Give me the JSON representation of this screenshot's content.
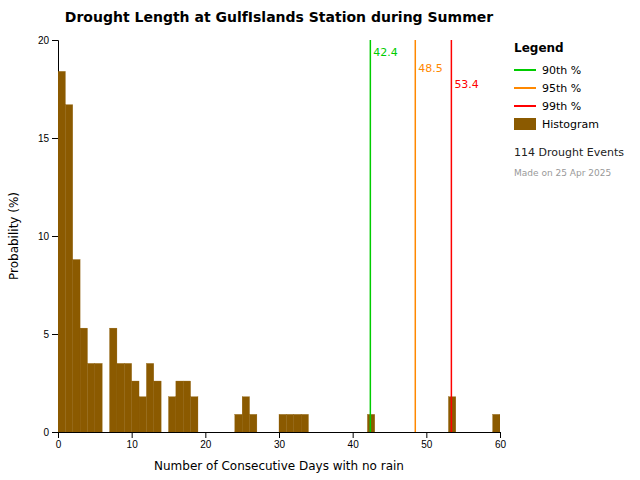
{
  "chart_data": {
    "type": "histogram",
    "title": "Drought Length at GulfIslands Station during Summer",
    "xlabel": "Number of Consecutive Days with no rain",
    "ylabel": "Probability (%)",
    "name": "Histogram",
    "color": "#8B5A00",
    "bins": [
      0,
      1,
      2,
      3,
      4,
      5,
      6,
      7,
      8,
      9,
      10,
      11,
      12,
      13,
      14,
      15,
      16,
      17,
      18,
      19,
      20,
      21,
      22,
      23,
      24,
      25,
      26,
      27,
      28,
      29,
      30,
      31,
      32,
      33,
      34,
      35,
      36,
      37,
      38,
      39,
      40,
      41,
      42,
      43,
      44,
      45,
      46,
      47,
      48,
      49,
      50,
      51,
      52,
      53,
      54,
      55,
      56,
      57,
      58,
      59,
      60
    ],
    "values": [
      18.4,
      16.7,
      8.8,
      5.3,
      3.5,
      3.5,
      0.0,
      5.3,
      3.5,
      3.5,
      2.6,
      1.8,
      3.5,
      2.6,
      0.0,
      1.8,
      2.6,
      2.6,
      1.8,
      0.0,
      0.0,
      0.0,
      0.0,
      0.0,
      0.9,
      1.8,
      0.9,
      0.0,
      0.0,
      0.0,
      0.9,
      0.9,
      0.9,
      0.9,
      0.0,
      0.0,
      0.0,
      0.0,
      0.0,
      0.0,
      0.0,
      0.0,
      0.9,
      0.0,
      0.0,
      0.0,
      0.0,
      0.0,
      0.0,
      0.0,
      0.0,
      0.0,
      0.0,
      1.8,
      0.0,
      0.0,
      0.0,
      0.0,
      0.0,
      0.9
    ],
    "lines": [
      {
        "name": "90th %",
        "value": 42.4,
        "color": "#00CC00"
      },
      {
        "name": "95th %",
        "value": 48.5,
        "color": "#FF8800"
      },
      {
        "name": "99th %",
        "value": 53.4,
        "color": "#FF0000"
      }
    ],
    "xlim": [
      0,
      60
    ],
    "ylim": [
      0,
      20
    ],
    "xticks": [
      0,
      10,
      20,
      30,
      40,
      50,
      60
    ],
    "yticks": [
      0,
      5,
      10,
      15,
      20
    ],
    "legend": "right",
    "legend_title": "Legend",
    "annotations": [
      "114 Drought Events",
      "Made on 25 Apr 2025"
    ]
  }
}
